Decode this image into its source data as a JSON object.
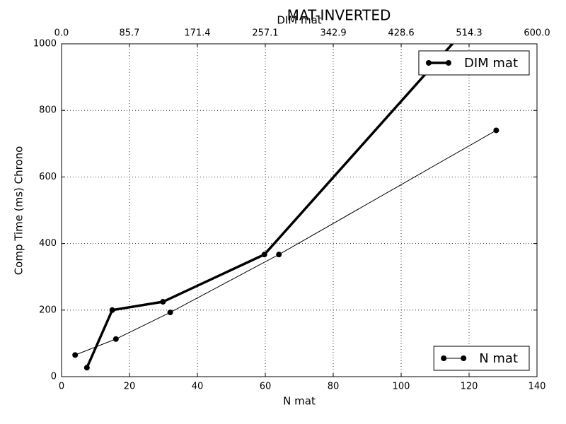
{
  "chart_data": {
    "type": "line",
    "title": "MAT-INVERTED",
    "xlabel": "N mat",
    "x2label": "DIM mat",
    "ylabel": "Comp Time (ms) Chrono",
    "xlim": [
      0,
      140
    ],
    "xticks": [
      0,
      20,
      40,
      60,
      80,
      100,
      120,
      140
    ],
    "x2lim": [
      0,
      600
    ],
    "x2ticks": [
      {
        "value": 0,
        "label": "0.0"
      },
      85.7,
      171.4,
      257.1,
      342.9,
      428.6,
      514.3,
      {
        "value": 600,
        "label": "600.0"
      }
    ],
    "ylim": [
      0,
      1000
    ],
    "yticks": [
      0,
      200,
      400,
      600,
      800,
      1000
    ],
    "grid": true,
    "series": [
      {
        "name": "DIM mat",
        "color": "#000000",
        "axis": "x2",
        "line_width": 3.5,
        "legend": "upper right",
        "x": [
          32,
          64,
          128,
          256,
          512
        ],
        "values": [
          27,
          200,
          225,
          367,
          1050
        ]
      },
      {
        "name": "N mat",
        "color": "#000000",
        "line_width": 1,
        "legend": "lower right",
        "x": [
          4,
          16,
          32,
          64,
          128
        ],
        "values": [
          65,
          113,
          193,
          367,
          740
        ]
      }
    ]
  }
}
